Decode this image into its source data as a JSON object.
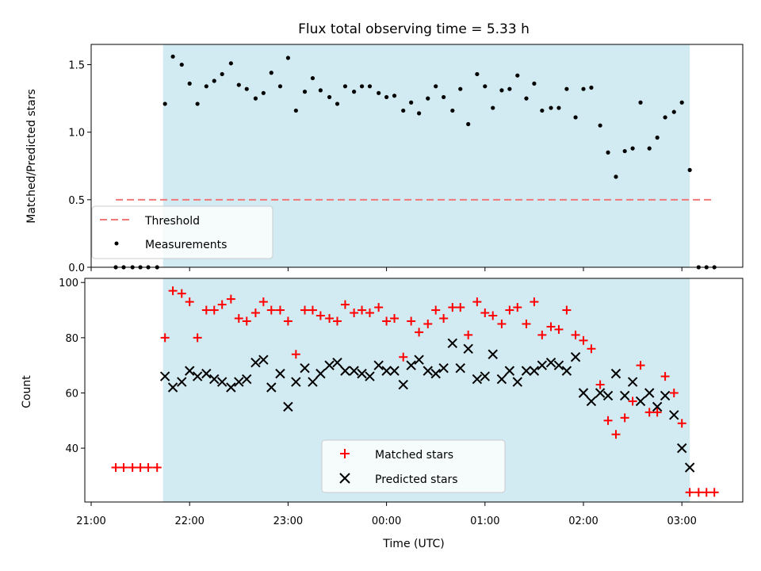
{
  "chart_data": [
    {
      "type": "scatter",
      "title": "Flux total observing time = 5.33 h",
      "xlabel": "",
      "ylabel": "Matched/Predicted stars",
      "ylim": [
        0,
        1.65
      ],
      "yticks": [
        "0.0",
        "0.5",
        "1.0",
        "1.5"
      ],
      "xlim_hours": [
        20.95,
        27.6
      ],
      "observing_window_hours": [
        21.73,
        27.08
      ],
      "threshold": {
        "name": "Threshold",
        "value": 0.5,
        "x_from_hours": 21.25,
        "x_to_hours": 27.33,
        "color": "#f07878"
      },
      "legend": [
        "Threshold",
        "Measurements"
      ],
      "legend_position": "lower-left",
      "series": [
        {
          "name": "Measurements",
          "color": "#000000",
          "x_hours": [
            21.25,
            21.33,
            21.42,
            21.5,
            21.58,
            21.67,
            21.75,
            21.83,
            21.92,
            22.0,
            22.08,
            22.17,
            22.25,
            22.33,
            22.42,
            22.5,
            22.58,
            22.67,
            22.75,
            22.83,
            22.92,
            23.0,
            23.08,
            23.17,
            23.25,
            23.33,
            23.42,
            23.5,
            23.58,
            23.67,
            23.75,
            23.83,
            23.92,
            24.0,
            24.08,
            24.17,
            24.25,
            24.33,
            24.42,
            24.5,
            24.58,
            24.67,
            24.75,
            24.83,
            24.92,
            25.0,
            25.08,
            25.17,
            25.25,
            25.33,
            25.42,
            25.5,
            25.58,
            25.67,
            25.75,
            25.83,
            25.92,
            26.0,
            26.08,
            26.17,
            26.25,
            26.33,
            26.42,
            26.5,
            26.58,
            26.67,
            26.75,
            26.83,
            26.92,
            27.0,
            27.08,
            27.17,
            27.25,
            27.33
          ],
          "y": [
            0,
            0,
            0,
            0,
            0,
            0,
            1.21,
            1.56,
            1.5,
            1.36,
            1.21,
            1.34,
            1.38,
            1.43,
            1.51,
            1.35,
            1.32,
            1.25,
            1.29,
            1.44,
            1.34,
            1.55,
            1.16,
            1.3,
            1.4,
            1.31,
            1.26,
            1.21,
            1.34,
            1.3,
            1.34,
            1.34,
            1.29,
            1.26,
            1.27,
            1.16,
            1.22,
            1.14,
            1.25,
            1.34,
            1.26,
            1.16,
            1.32,
            1.06,
            1.43,
            1.34,
            1.18,
            1.31,
            1.32,
            1.42,
            1.25,
            1.36,
            1.16,
            1.18,
            1.18,
            1.32,
            1.11,
            1.32,
            1.33,
            1.05,
            0.85,
            0.67,
            0.86,
            0.88,
            1.22,
            0.88,
            0.96,
            1.11,
            1.15,
            1.22,
            0.72,
            0,
            0,
            0
          ]
        }
      ]
    },
    {
      "type": "scatter",
      "title": "",
      "xlabel": "Time (UTC)",
      "ylabel": "Count",
      "ylim": [
        20.5,
        101.5
      ],
      "yticks": [
        "40",
        "60",
        "80",
        "100"
      ],
      "xticks": [
        "21:00",
        "22:00",
        "23:00",
        "00:00",
        "01:00",
        "02:00",
        "03:00"
      ],
      "xlim_hours": [
        20.95,
        27.6
      ],
      "observing_window_hours": [
        21.73,
        27.08
      ],
      "legend": [
        "Matched stars",
        "Predicted stars"
      ],
      "legend_position": "lower-center",
      "series": [
        {
          "name": "Matched stars",
          "color": "#ff0000",
          "marker": "plus",
          "x_hours": [
            21.25,
            21.33,
            21.42,
            21.5,
            21.58,
            21.67,
            21.75,
            21.83,
            21.92,
            22.0,
            22.08,
            22.17,
            22.25,
            22.33,
            22.42,
            22.5,
            22.58,
            22.67,
            22.75,
            22.83,
            22.92,
            23.0,
            23.08,
            23.17,
            23.25,
            23.33,
            23.42,
            23.5,
            23.58,
            23.67,
            23.75,
            23.83,
            23.92,
            24.0,
            24.08,
            24.17,
            24.25,
            24.33,
            24.42,
            24.5,
            24.58,
            24.67,
            24.75,
            24.83,
            24.92,
            25.0,
            25.08,
            25.17,
            25.25,
            25.33,
            25.42,
            25.5,
            25.58,
            25.67,
            25.75,
            25.83,
            25.92,
            26.0,
            26.08,
            26.17,
            26.25,
            26.33,
            26.42,
            26.5,
            26.58,
            26.67,
            26.75,
            26.83,
            26.92,
            27.0,
            27.08,
            27.17,
            27.25,
            27.33
          ],
          "y": [
            33,
            33,
            33,
            33,
            33,
            33,
            80,
            97,
            96,
            93,
            80,
            90,
            90,
            92,
            94,
            87,
            86,
            89,
            93,
            90,
            90,
            86,
            74,
            90,
            90,
            88,
            87,
            86,
            92,
            89,
            90,
            89,
            91,
            86,
            87,
            73,
            86,
            82,
            85,
            90,
            87,
            91,
            91,
            81,
            93,
            89,
            88,
            85,
            90,
            91,
            85,
            93,
            81,
            84,
            83,
            90,
            81,
            79,
            76,
            63,
            50,
            45,
            51,
            57,
            70,
            53,
            53,
            66,
            60,
            49,
            24,
            24,
            24,
            24
          ]
        },
        {
          "name": "Predicted stars",
          "color": "#000000",
          "marker": "x",
          "x_hours": [
            21.75,
            21.83,
            21.92,
            22.0,
            22.08,
            22.17,
            22.25,
            22.33,
            22.42,
            22.5,
            22.58,
            22.67,
            22.75,
            22.83,
            22.92,
            23.0,
            23.08,
            23.17,
            23.25,
            23.33,
            23.42,
            23.5,
            23.58,
            23.67,
            23.75,
            23.83,
            23.92,
            24.0,
            24.08,
            24.17,
            24.25,
            24.33,
            24.42,
            24.5,
            24.58,
            24.67,
            24.75,
            24.83,
            24.92,
            25.0,
            25.08,
            25.17,
            25.25,
            25.33,
            25.42,
            25.5,
            25.58,
            25.67,
            25.75,
            25.83,
            25.92,
            26.0,
            26.08,
            26.17,
            26.25,
            26.33,
            26.42,
            26.5,
            26.58,
            26.67,
            26.75,
            26.83,
            26.92,
            27.0,
            27.08
          ],
          "y": [
            66,
            62,
            64,
            68,
            66,
            67,
            65,
            64,
            62,
            64,
            65,
            71,
            72,
            62,
            67,
            55,
            64,
            69,
            64,
            67,
            70,
            71,
            68,
            68,
            67,
            66,
            70,
            68,
            68,
            63,
            70,
            72,
            68,
            67,
            69,
            78,
            69,
            76,
            65,
            66,
            74,
            65,
            68,
            64,
            68,
            68,
            70,
            71,
            70,
            68,
            73,
            60,
            57,
            60,
            59,
            67,
            59,
            64,
            57,
            60,
            55,
            59,
            52,
            40,
            33
          ]
        }
      ]
    }
  ]
}
